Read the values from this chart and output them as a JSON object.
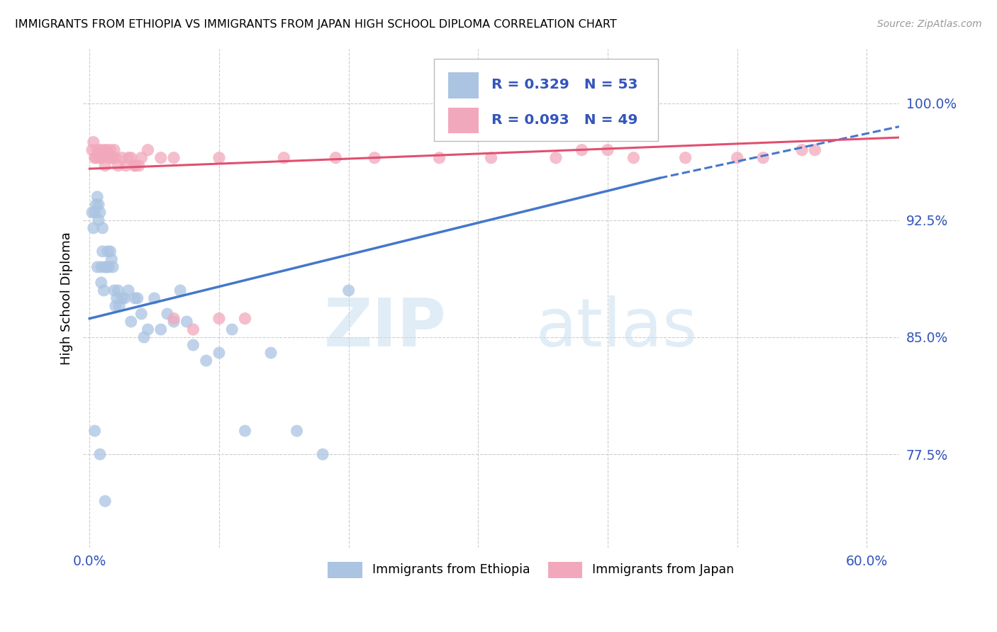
{
  "title": "IMMIGRANTS FROM ETHIOPIA VS IMMIGRANTS FROM JAPAN HIGH SCHOOL DIPLOMA CORRELATION CHART",
  "source": "Source: ZipAtlas.com",
  "ylabel": "High School Diploma",
  "yticks": [
    0.775,
    0.85,
    0.925,
    1.0
  ],
  "ytick_labels": [
    "77.5%",
    "85.0%",
    "92.5%",
    "100.0%"
  ],
  "xtick_positions": [
    0.0,
    0.1,
    0.2,
    0.3,
    0.4,
    0.5,
    0.6
  ],
  "xlim": [
    -0.005,
    0.625
  ],
  "ylim": [
    0.715,
    1.035
  ],
  "color_ethiopia": "#aac4e2",
  "color_japan": "#f2a8bc",
  "color_trend_ethiopia": "#4477cc",
  "color_trend_japan": "#e05070",
  "color_axis_text": "#3355bb",
  "color_grid": "#cccccc",
  "watermark_zip": "ZIP",
  "watermark_atlas": "atlas",
  "eth_trend_x0": 0.0,
  "eth_trend_y0": 0.862,
  "eth_trend_x1": 0.44,
  "eth_trend_y1": 0.952,
  "eth_trend_dash_x0": 0.44,
  "eth_trend_dash_y0": 0.952,
  "eth_trend_dash_x1": 0.625,
  "eth_trend_dash_y1": 0.985,
  "jap_trend_x0": 0.0,
  "jap_trend_y0": 0.958,
  "jap_trend_x1": 0.625,
  "jap_trend_y1": 0.978,
  "ethiopia_x": [
    0.002,
    0.003,
    0.004,
    0.005,
    0.006,
    0.006,
    0.007,
    0.007,
    0.008,
    0.009,
    0.009,
    0.01,
    0.01,
    0.011,
    0.012,
    0.013,
    0.014,
    0.015,
    0.016,
    0.017,
    0.018,
    0.019,
    0.02,
    0.021,
    0.022,
    0.023,
    0.025,
    0.027,
    0.03,
    0.032,
    0.035,
    0.037,
    0.04,
    0.042,
    0.045,
    0.05,
    0.055,
    0.06,
    0.065,
    0.07,
    0.075,
    0.08,
    0.09,
    0.1,
    0.11,
    0.12,
    0.14,
    0.16,
    0.18,
    0.2,
    0.004,
    0.008,
    0.012
  ],
  "ethiopia_y": [
    0.93,
    0.92,
    0.93,
    0.935,
    0.94,
    0.895,
    0.935,
    0.925,
    0.93,
    0.885,
    0.895,
    0.905,
    0.92,
    0.88,
    0.895,
    0.895,
    0.905,
    0.895,
    0.905,
    0.9,
    0.895,
    0.88,
    0.87,
    0.875,
    0.88,
    0.87,
    0.875,
    0.875,
    0.88,
    0.86,
    0.875,
    0.875,
    0.865,
    0.85,
    0.855,
    0.875,
    0.855,
    0.865,
    0.86,
    0.88,
    0.86,
    0.845,
    0.835,
    0.84,
    0.855,
    0.79,
    0.84,
    0.79,
    0.775,
    0.88,
    0.79,
    0.775,
    0.745
  ],
  "japan_x": [
    0.002,
    0.003,
    0.005,
    0.006,
    0.007,
    0.008,
    0.009,
    0.01,
    0.011,
    0.012,
    0.013,
    0.015,
    0.016,
    0.017,
    0.018,
    0.019,
    0.02,
    0.022,
    0.025,
    0.028,
    0.03,
    0.032,
    0.035,
    0.038,
    0.04,
    0.045,
    0.055,
    0.065,
    0.08,
    0.1,
    0.12,
    0.15,
    0.19,
    0.22,
    0.27,
    0.31,
    0.36,
    0.38,
    0.4,
    0.42,
    0.46,
    0.5,
    0.52,
    0.55,
    0.56,
    0.004,
    0.035,
    0.065,
    0.1
  ],
  "japan_y": [
    0.97,
    0.975,
    0.965,
    0.97,
    0.965,
    0.97,
    0.965,
    0.965,
    0.97,
    0.96,
    0.97,
    0.965,
    0.97,
    0.965,
    0.965,
    0.97,
    0.965,
    0.96,
    0.965,
    0.96,
    0.965,
    0.965,
    0.96,
    0.96,
    0.965,
    0.97,
    0.965,
    0.965,
    0.855,
    0.965,
    0.862,
    0.965,
    0.965,
    0.965,
    0.965,
    0.965,
    0.965,
    0.97,
    0.97,
    0.965,
    0.965,
    0.965,
    0.965,
    0.97,
    0.97,
    0.965,
    0.96,
    0.862,
    0.862
  ]
}
